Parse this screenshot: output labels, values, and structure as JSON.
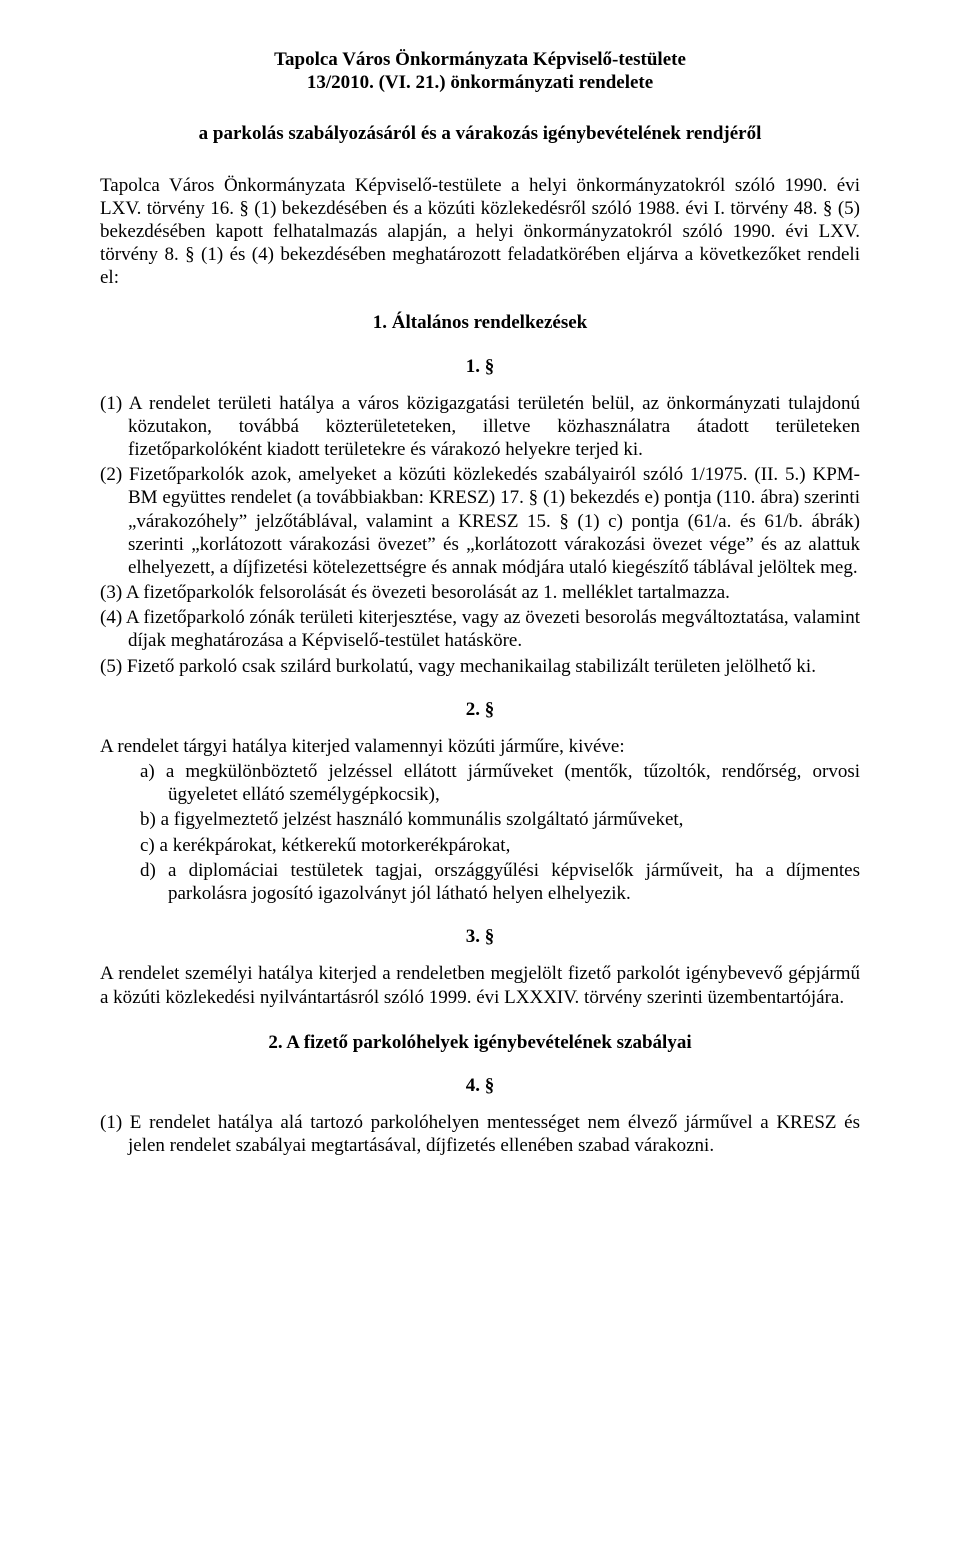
{
  "header": {
    "title_line1": "Tapolca Város Önkormányzata Képviselő-testülete",
    "title_line2": "13/2010. (VI. 21.) önkormányzati rendelete",
    "subtitle": "a parkolás szabályozásáról és a várakozás igénybevételének rendjéről"
  },
  "intro": "Tapolca Város Önkormányzata Képviselő-testülete a helyi önkormányzatokról szóló 1990. évi LXV. törvény 16. § (1) bekezdésében és a közúti közlekedésről szóló 1988. évi I. törvény 48. § (5) bekezdésében kapott felhatalmazás alapján, a helyi önkormányzatokról szóló 1990. évi LXV. törvény 8. § (1) és (4) bekezdésében meghatározott feladatkörében eljárva a következőket rendeli el:",
  "s1": {
    "heading": "1. Általános rendelkezések",
    "num": "1. §",
    "p1": "(1) A rendelet területi hatálya a város közigazgatási területén belül, az önkormányzati tulajdonú közutakon, továbbá közterületeteken, illetve közhasználatra átadott területeken fizetőparkolóként kiadott területekre és várakozó helyekre terjed ki.",
    "p2": "(2) Fizetőparkolók azok, amelyeket a közúti közlekedés szabályairól szóló 1/1975. (II. 5.) KPM-BM együttes rendelet (a továbbiakban: KRESZ) 17. § (1) bekezdés e) pontja (110. ábra) szerinti „várakozóhely” jelzőtáblával, valamint a KRESZ 15. § (1) c) pontja (61/a. és 61/b. ábrák) szerinti „korlátozott várakozási övezet” és „korlátozott várakozási övezet vége” és az alattuk elhelyezett, a díjfizetési kötelezettségre és annak módjára utaló kiegészítő táblával jelöltek meg.",
    "p3": "(3) A fizetőparkolók felsorolását és övezeti besorolását az 1. melléklet tartalmazza.",
    "p4": "(4) A fizetőparkoló zónák területi kiterjesztése, vagy az övezeti besorolás megváltoztatása, valamint díjak meghatározása a Képviselő-testület hatásköre.",
    "p5": "(5) Fizető parkoló csak szilárd burkolatú, vagy mechanikailag stabilizált területen jelölhető ki."
  },
  "s2": {
    "num": "2. §",
    "lead": "A rendelet tárgyi hatálya kiterjed valamennyi közúti járműre, kivéve:",
    "a": "a)  a megkülönböztető jelzéssel ellátott járműveket (mentők, tűzoltók, rendőrség, orvosi ügyeletet ellátó személygépkocsik),",
    "b": "b)  a figyelmeztető jelzést használó kommunális szolgáltató járműveket,",
    "c": "c)  a kerékpárokat, kétkerekű motorkerékpárokat,",
    "d": "d)  a diplomáciai testületek tagjai, országgyűlési képviselők járműveit, ha a díjmentes parkolásra jogosító igazolványt jól látható helyen elhelyezik."
  },
  "s3": {
    "num": "3. §",
    "p": "A rendelet személyi hatálya kiterjed a rendeletben megjelölt fizető parkolót igénybevevő gépjármű a közúti közlekedési nyilvántartásról szóló 1999. évi LXXXIV. törvény szerinti üzembentartójára."
  },
  "s4": {
    "heading": "2. A fizető parkolóhelyek igénybevételének szabályai",
    "num": "4. §",
    "p1": "(1) E rendelet hatálya alá tartozó parkolóhelyen mentességet nem élvező járművel a KRESZ és jelen rendelet szabályai megtartásával, díjfizetés ellenében szabad várakozni."
  }
}
